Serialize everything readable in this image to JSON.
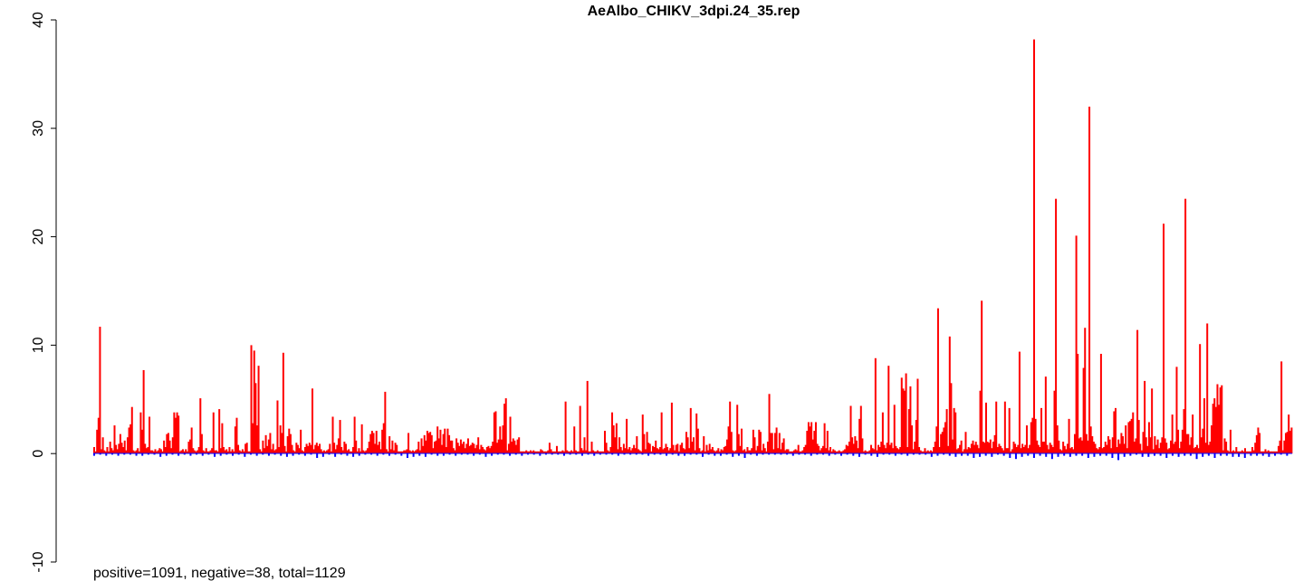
{
  "chart_data": {
    "type": "bar",
    "title": "AeAlbo_CHIKV_3dpi.24_35.rep",
    "xlabel": "",
    "ylabel": "",
    "ylim": [
      -10,
      40
    ],
    "yticks": [
      -10,
      0,
      10,
      20,
      30,
      40
    ],
    "grid": false,
    "footer": "positive=1091, negative=38, total=1129",
    "colors": {
      "positive": "#ff0000",
      "negative": "#0000ff",
      "axis": "#000000"
    },
    "series": [
      {
        "name": "positive",
        "values": [
          0.6,
          0.2,
          2.2,
          3.3,
          11.7,
          0.4,
          1.5,
          0.3,
          0.2,
          0.6,
          0.2,
          1.1,
          0.5,
          0.3,
          2.6,
          0.8,
          0.4,
          0.9,
          1.8,
          1.0,
          0.6,
          1.2,
          0.3,
          1.5,
          2.4,
          2.7,
          4.3,
          0.3,
          0.2,
          0.3,
          0.5,
          0.2,
          3.8,
          2.2,
          7.7,
          0.9,
          0.5,
          0.6,
          3.4,
          0.3,
          0.3,
          0.2,
          0.4,
          0.2,
          0.3,
          0.5,
          0.4,
          0.2,
          1.2,
          0.6,
          1.8,
          1.9,
          1.2,
          0.5,
          1.5,
          3.8,
          3.3,
          3.8,
          3.5,
          0.2,
          0.3,
          0.4,
          0.2,
          0.4,
          0.2,
          1.1,
          1.3,
          2.4,
          0.5,
          0.3,
          0.2,
          0.3,
          0.6,
          5.1,
          1.8,
          0.3,
          0.2,
          0.5,
          0.2,
          0.2,
          0.3,
          0.5,
          3.8,
          0.3,
          0.3,
          0.2,
          4.1,
          0.5,
          2.8,
          0.6,
          0.3,
          0.4,
          0.2,
          0.6,
          0.2,
          0.4,
          0.2,
          2.5,
          3.3,
          0.8,
          0.3,
          0.2,
          0.4,
          0.2,
          0.9,
          1.0,
          0.2,
          0.2,
          10.0,
          2.8,
          9.5,
          6.5,
          2.6,
          8.1,
          0.4,
          0.2,
          1.2,
          0.5,
          1.7,
          0.7,
          1.3,
          1.9,
          0.4,
          0.9,
          0.3,
          0.4,
          4.9,
          0.6,
          2.6,
          1.9,
          9.3,
          0.7,
          0.2,
          1.6,
          2.3,
          1.8,
          0.8,
          0.3,
          0.2,
          1.0,
          0.8,
          0.5,
          2.2,
          0.3,
          0.2,
          0.6,
          0.9,
          0.7,
          1.0,
          0.8,
          6.0,
          0.4,
          0.8,
          1.0,
          0.7,
          0.9,
          0.4,
          0.2,
          0.3,
          0.2,
          0.3,
          0.4,
          0.9,
          0.2,
          3.4,
          1.0,
          0.4,
          0.8,
          1.4,
          3.1,
          0.6,
          0.3,
          1.1,
          0.9,
          0.3,
          0.4,
          0.2,
          0.2,
          0.6,
          3.4,
          1.2,
          0.2,
          0.5,
          0.2,
          2.7,
          0.3,
          0.2,
          0.3,
          0.5,
          1.1,
          1.8,
          2.1,
          1.9,
          0.9,
          2.1,
          0.8,
          1.1,
          0.4,
          2.2,
          2.8,
          5.7,
          0.4,
          0.2,
          1.6,
          0.4,
          1.2,
          0.3,
          1.0,
          0.8,
          0.2,
          0.2,
          0.2,
          0.2,
          0.3,
          0.3,
          0.4,
          1.9,
          0.3,
          0.2,
          0.3,
          0.2,
          0.3,
          0.4,
          1.1,
          0.3,
          1.4,
          0.7,
          1.7,
          1.2,
          2.1,
          1.9,
          2.0,
          1.7,
          0.5,
          1.1,
          1.2,
          2.5,
          1.4,
          2.2,
          0.8,
          1.8,
          2.3,
          0.6,
          2.3,
          1.7,
          1.2,
          1.2,
          0.5,
          0.3,
          1.4,
          1.0,
          0.7,
          1.3,
          0.9,
          1.1,
          0.5,
          0.9,
          1.4,
          0.7,
          0.8,
          1.0,
          0.9,
          0.5,
          0.8,
          1.5,
          0.4,
          0.8,
          0.6,
          0.4,
          0.3,
          0.6,
          0.7,
          0.5,
          0.7,
          1.1,
          3.8,
          3.9,
          1.0,
          1.3,
          2.5,
          1.3,
          2.6,
          4.6,
          5.1,
          0.3,
          0.9,
          3.4,
          1.1,
          1.4,
          1.2,
          0.8,
          1.3,
          1.5,
          0.2,
          0.2,
          0.2,
          0.2,
          0.3,
          0.2,
          0.2,
          0.3,
          0.2,
          0.3,
          0.2,
          0.2,
          0.2,
          0.2,
          0.4,
          0.3,
          0.2,
          0.2,
          0.2,
          0.3,
          1.0,
          0.4,
          0.2,
          0.2,
          0.2,
          0.7,
          0.2,
          0.2,
          0.2,
          0.3,
          0.2,
          4.8,
          0.3,
          0.2,
          0.2,
          0.3,
          0.2,
          2.5,
          0.3,
          0.2,
          0.2,
          4.4,
          0.5,
          0.3,
          1.5,
          0.3,
          6.7,
          0.2,
          0.2,
          1.1,
          0.3,
          0.2,
          0.2,
          0.3,
          0.2,
          0.2,
          0.2,
          0.2,
          2.1,
          1.0,
          0.3,
          0.2,
          0.6,
          3.8,
          2.6,
          1.5,
          2.8,
          0.4,
          1.5,
          0.6,
          0.3,
          0.9,
          0.5,
          3.2,
          0.4,
          0.6,
          0.3,
          0.5,
          0.8,
          0.5,
          1.6,
          0.4,
          0.3,
          0.2,
          3.6,
          1.8,
          0.4,
          2.0,
          1.0,
          0.9,
          0.2,
          0.7,
          0.6,
          1.2,
          0.5,
          0.4,
          0.6,
          3.8,
          0.4,
          0.5,
          0.9,
          0.6,
          0.3,
          0.5,
          4.7,
          0.8,
          0.3,
          0.8,
          0.9,
          0.2,
          0.8,
          1.0,
          0.5,
          0.4,
          2.0,
          1.5,
          0.5,
          4.2,
          1.1,
          1.5,
          0.3,
          3.7,
          2.3,
          0.5,
          0.2,
          0.3,
          1.6,
          0.2,
          0.8,
          0.3,
          0.9,
          0.4,
          0.6,
          0.3,
          0.2,
          0.3,
          0.5,
          0.2,
          0.4,
          0.3,
          0.6,
          0.7,
          1.3,
          2.5,
          4.8,
          2.0,
          0.3,
          0.2,
          0.3,
          4.5,
          1.8,
          0.7,
          2.3,
          0.3,
          0.4,
          0.2,
          0.6,
          0.3,
          0.3,
          0.5,
          2.2,
          1.5,
          0.3,
          0.7,
          2.2,
          2.0,
          0.3,
          0.9,
          0.5,
          0.2,
          1.1,
          5.5,
          1.9,
          1.9,
          0.4,
          1.9,
          2.4,
          0.5,
          1.9,
          0.4,
          1.0,
          1.4,
          0.3,
          0.4,
          0.4,
          0.2,
          0.2,
          0.2,
          0.3,
          0.4,
          0.3,
          0.8,
          0.2,
          0.2,
          0.3,
          0.6,
          0.8,
          2.1,
          2.9,
          2.5,
          2.9,
          1.3,
          2.1,
          2.9,
          0.9,
          0.7,
          0.3,
          0.5,
          0.7,
          2.8,
          0.5,
          2.1,
          0.3,
          0.6,
          0.2,
          0.4,
          0.3,
          0.2,
          0.2,
          0.3,
          0.2,
          0.2,
          0.3,
          0.4,
          0.8,
          0.7,
          1.1,
          4.4,
          1.5,
          0.9,
          1.6,
          1.2,
          0.5,
          3.2,
          4.4,
          1.4,
          0.2,
          0.3,
          0.2,
          0.2,
          0.3,
          0.8,
          0.5,
          0.4,
          8.8,
          0.3,
          0.8,
          0.6,
          1.1,
          3.8,
          0.8,
          0.5,
          1.0,
          8.1,
          0.8,
          1.0,
          0.5,
          4.5,
          0.7,
          0.5,
          0.4,
          0.6,
          7.0,
          6.0,
          5.8,
          7.4,
          0.6,
          4.1,
          6.2,
          2.6,
          0.4,
          1.1,
          3.1,
          6.9,
          0.6,
          0.3,
          0.2,
          0.2,
          0.5,
          0.2,
          0.3,
          0.2,
          0.3,
          0.2,
          0.6,
          1.1,
          2.5,
          13.4,
          0.6,
          1.8,
          2.0,
          2.4,
          2.9,
          4.1,
          0.7,
          10.8,
          6.5,
          1.3,
          4.2,
          3.8,
          0.4,
          0.5,
          0.8,
          1.2,
          0.2,
          0.4,
          2.0,
          0.4,
          0.6,
          0.5,
          0.9,
          1.2,
          0.8,
          1.1,
          0.8,
          0.5,
          5.8,
          14.1,
          1.1,
          1.0,
          4.7,
          1.1,
          1.0,
          1.3,
          0.5,
          1.1,
          1.7,
          4.8,
          0.6,
          0.9,
          0.7,
          0.5,
          0.3,
          4.8,
          0.5,
          0.5,
          4.2,
          0.2,
          0.4,
          1.1,
          0.9,
          0.6,
          0.8,
          9.4,
          0.5,
          0.9,
          0.6,
          0.8,
          2.6,
          0.5,
          0.8,
          2.9,
          3.3,
          38.2,
          3.2,
          1.2,
          0.8,
          0.6,
          4.2,
          1.1,
          1.1,
          7.1,
          0.8,
          0.4,
          1.0,
          0.8,
          0.6,
          5.8,
          23.5,
          2.6,
          1.2,
          0.4,
          0.3,
          1.1,
          0.7,
          0.4,
          0.9,
          3.2,
          0.5,
          0.6,
          0.4,
          1.8,
          20.1,
          9.2,
          1.4,
          1.5,
          1.2,
          7.9,
          11.6,
          1.8,
          1.2,
          32.0,
          2.5,
          1.6,
          1.1,
          0.9,
          0.5,
          0.4,
          0.6,
          9.2,
          0.5,
          0.6,
          1.1,
          0.8,
          1.6,
          1.3,
          0.5,
          1.5,
          3.9,
          4.2,
          0.6,
          1.3,
          0.9,
          1.9,
          1.6,
          0.9,
          2.6,
          0.5,
          2.9,
          3.0,
          3.2,
          3.8,
          1.1,
          1.4,
          11.4,
          3.1,
          0.9,
          0.3,
          2.0,
          6.7,
          1.5,
          0.7,
          2.9,
          1.5,
          6.0,
          0.4,
          1.6,
          0.8,
          1.3,
          0.5,
          1.0,
          1.5,
          21.2,
          1.4,
          1.0,
          0.4,
          0.5,
          1.2,
          3.6,
          0.9,
          1.1,
          8.0,
          2.2,
          0.5,
          1.1,
          2.2,
          4.1,
          23.5,
          1.8,
          1.8,
          0.8,
          1.5,
          3.6,
          0.5,
          0.6,
          0.8,
          0.5,
          10.1,
          1.5,
          2.3,
          5.1,
          1.0,
          12.0,
          0.8,
          1.1,
          2.6,
          4.6,
          5.1,
          4.3,
          6.4,
          4.5,
          6.1,
          6.3,
          0.3,
          1.4,
          1.1,
          0.3,
          0.2,
          2.2,
          0.2,
          0.3,
          0.2,
          0.6,
          0.2,
          0.2,
          0.2,
          0.3,
          0.2,
          0.5,
          0.2,
          0.2,
          0.2,
          0.2,
          0.6,
          0.3,
          1.0,
          1.7,
          2.4,
          1.9,
          0.2,
          0.2,
          0.2,
          0.4,
          0.2,
          0.3,
          0.2,
          0.2,
          0.2,
          0.2,
          0.2,
          0.2,
          0.7,
          1.2,
          8.5,
          0.3,
          1.2,
          1.9,
          2.0,
          3.6,
          2.1,
          2.4
        ]
      },
      {
        "name": "negative",
        "values": [
          -0.2,
          -0.1,
          -0.2,
          -0.1,
          -0.2,
          -0.1,
          -0.1,
          -0.2,
          -0.2,
          -0.1,
          -0.1,
          -0.3,
          -0.2,
          -0.1,
          -0.2,
          -0.1,
          -0.2,
          -0.1,
          -0.2,
          -0.1,
          -0.3,
          -0.2,
          -0.1,
          -0.2,
          -0.1,
          -0.3,
          -0.1,
          -0.2,
          -0.1,
          -0.2,
          -0.1,
          -0.2,
          -0.3,
          -0.2,
          -0.1,
          -0.2,
          -0.1,
          -0.4,
          -0.3,
          -0.1,
          -0.3,
          -0.1,
          -0.2,
          -0.3,
          -0.2,
          -0.1,
          -0.1,
          -0.2,
          -0.1,
          -0.2,
          -0.1,
          -0.2,
          -0.4,
          -0.3,
          -0.2,
          -0.3,
          -0.1,
          -0.2,
          -0.2,
          -0.1,
          -0.2,
          -0.1,
          -0.1,
          -0.2,
          -0.1,
          -0.3,
          -0.2,
          -0.1,
          -0.1,
          -0.2,
          -0.1,
          -0.2,
          -0.1,
          -0.1,
          -0.2,
          -0.1,
          -0.1,
          -0.1,
          -0.2,
          -0.1,
          -0.1,
          -0.2,
          -0.1,
          -0.2,
          -0.1,
          -0.1,
          -0.1,
          -0.2,
          -0.1,
          -0.1,
          -0.1,
          -0.1,
          -0.2,
          -0.1,
          -0.1,
          -0.2,
          -0.1,
          -0.2,
          -0.2,
          -0.1,
          -0.1,
          -0.3,
          -0.1,
          -0.2,
          -0.2,
          -0.1,
          -0.3,
          -0.2,
          -0.4,
          -0.1,
          -0.2,
          -0.1,
          -0.1,
          -0.1,
          -0.1,
          -0.1,
          -0.2,
          -0.1,
          -0.1,
          -0.2,
          -0.1,
          -0.1,
          -0.2,
          -0.1,
          -0.2,
          -0.1,
          -0.2,
          -0.3,
          -0.1,
          -0.2,
          -0.3,
          -0.1,
          -0.1,
          -0.2,
          -0.1,
          -0.2,
          -0.1,
          -0.1,
          -0.1,
          -0.3,
          -0.2,
          -0.1,
          -0.2,
          -0.3,
          -0.2,
          -0.2,
          -0.4,
          -0.3,
          -0.2,
          -0.3,
          -0.1,
          -0.2,
          -0.4,
          -0.5,
          -0.3,
          -0.2,
          -0.4,
          -0.2,
          -0.3,
          -0.5,
          -0.3,
          -0.2,
          -0.3,
          -0.2,
          -0.2,
          -0.4,
          -0.3,
          -0.2,
          -0.2,
          -0.4,
          -0.6,
          -0.3,
          -0.2,
          -0.1,
          -0.3,
          -0.3,
          -0.2,
          -0.2,
          -0.4,
          -0.2,
          -0.3,
          -0.2,
          -0.2,
          -0.5,
          -0.3,
          -0.2,
          -0.4,
          -0.2,
          -0.2,
          -0.3,
          -0.3,
          -0.4,
          -0.2,
          -0.2,
          -0.2,
          -0.3,
          -0.2,
          -0.1,
          -0.2
        ]
      }
    ]
  }
}
